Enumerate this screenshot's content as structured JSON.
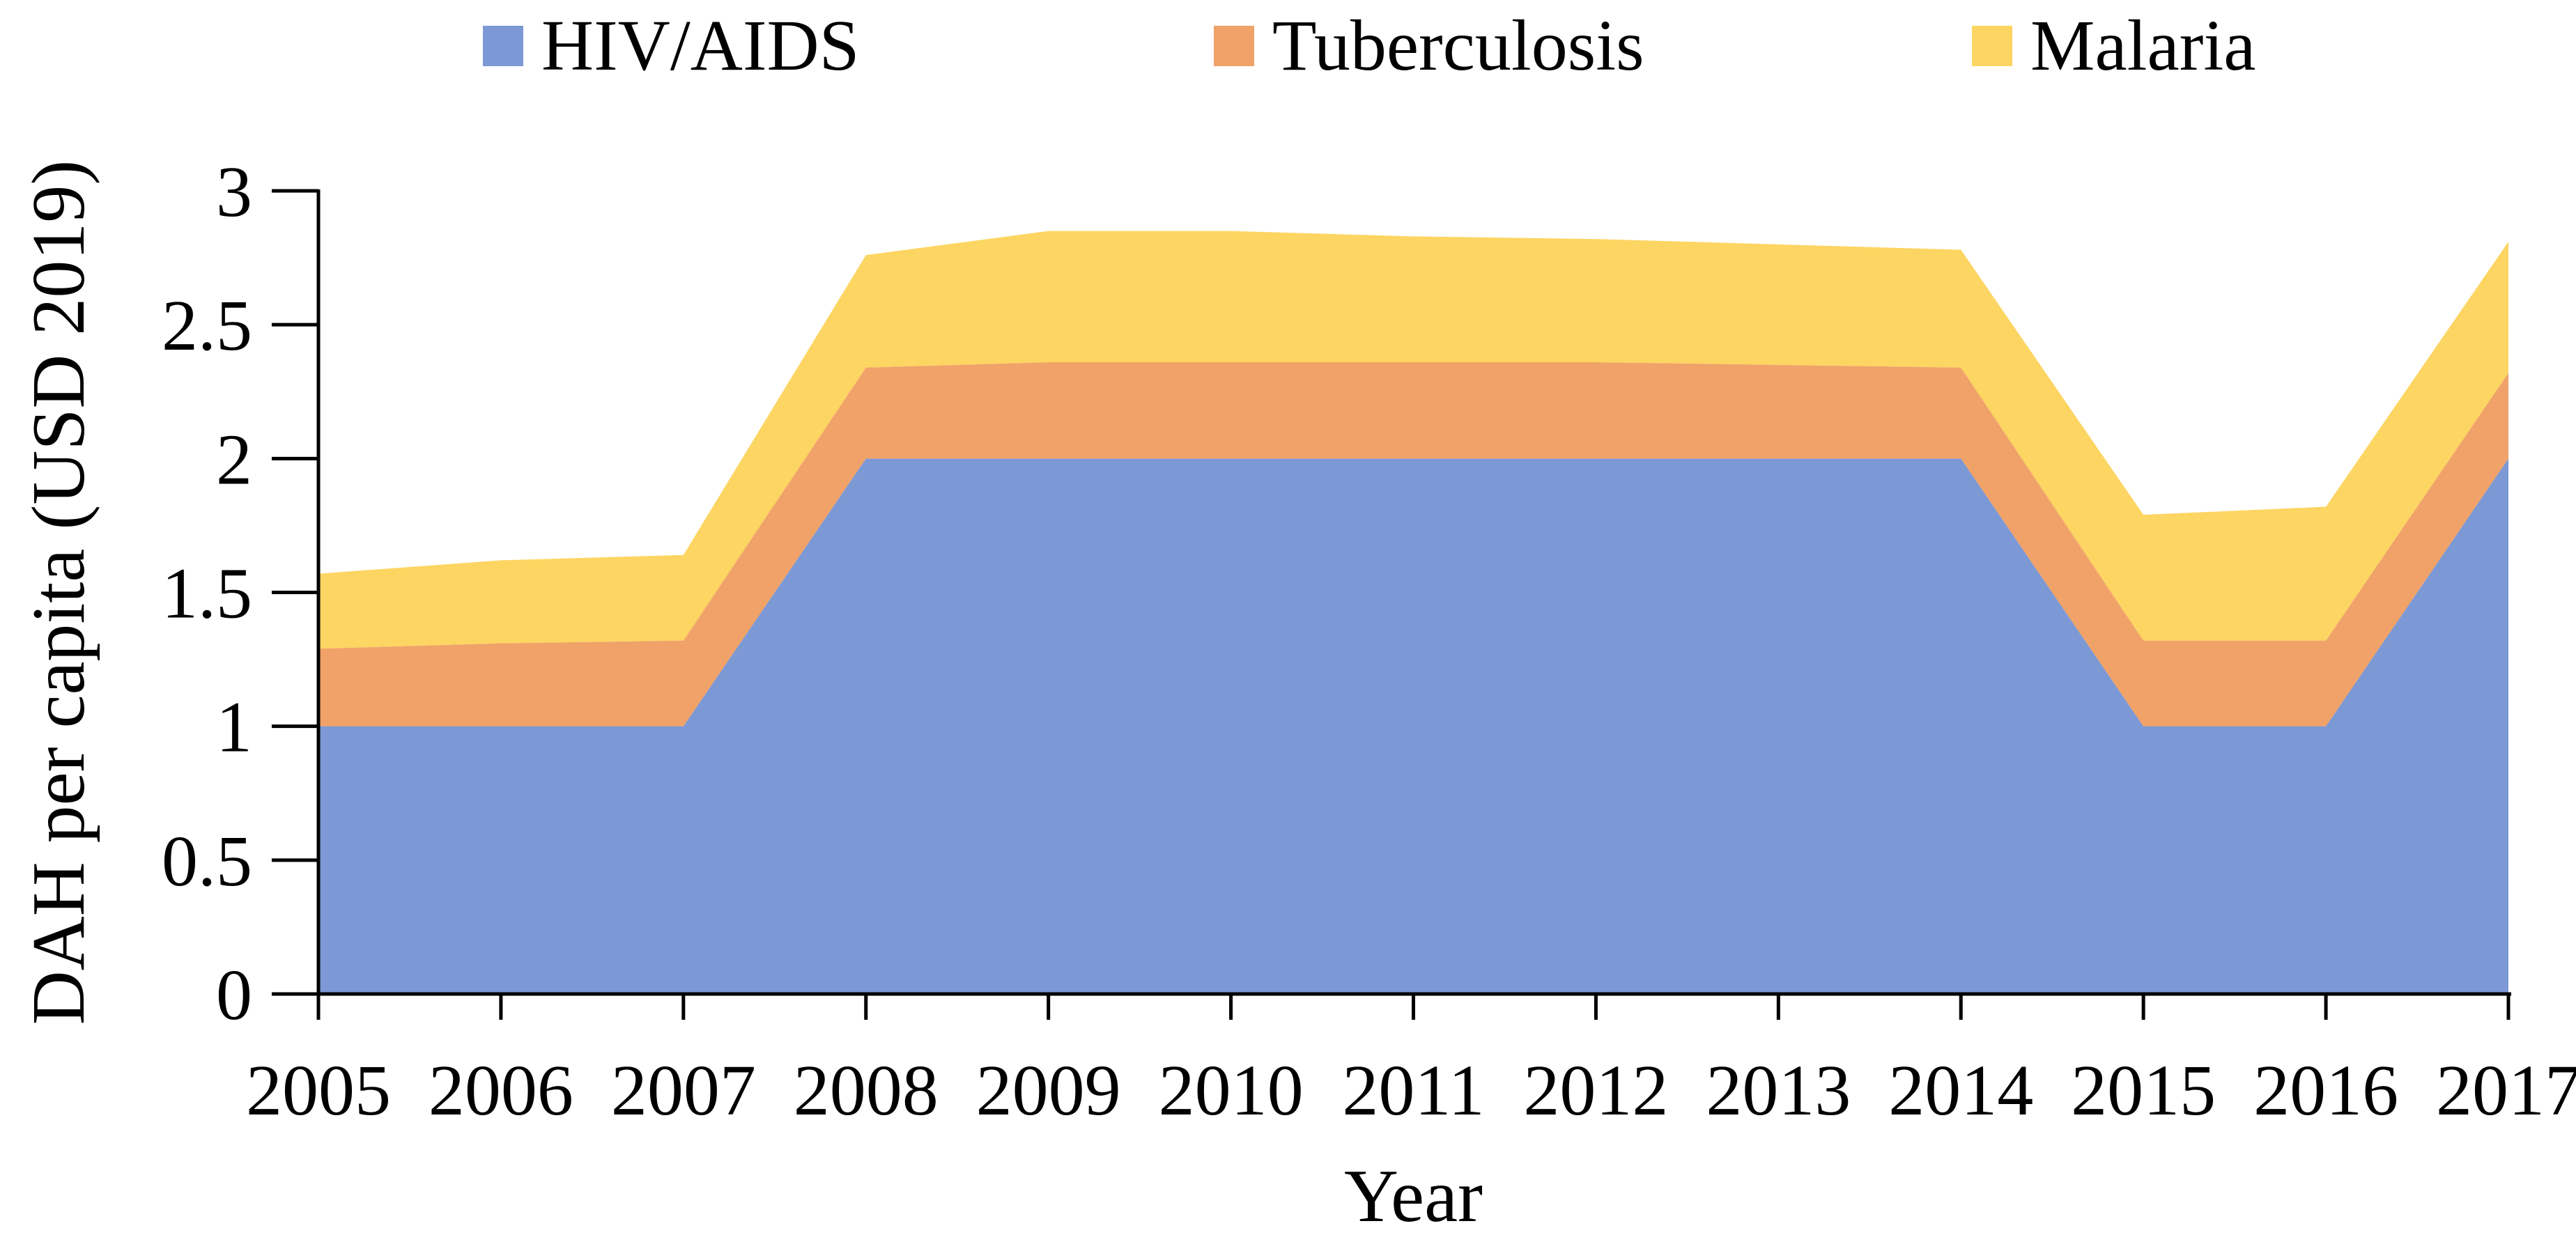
{
  "legend": {
    "items": [
      {
        "id": "hiv",
        "label": "HIV/AIDS",
        "color": "#7C98D5"
      },
      {
        "id": "tb",
        "label": "Tuberculosis",
        "color": "#F0A268"
      },
      {
        "id": "malaria",
        "label": "Malaria",
        "color": "#FDD562"
      }
    ]
  },
  "y_axis": {
    "title": "DAH per capita (USD 2019)",
    "tick_labels": [
      "0",
      "0.5",
      "1",
      "1.5",
      "2",
      "2.5",
      "3"
    ],
    "tick_values": [
      0,
      0.5,
      1,
      1.5,
      2,
      2.5,
      3
    ],
    "min": 0,
    "max": 3
  },
  "x_axis": {
    "title": "Year",
    "tick_labels": [
      "2005",
      "2006",
      "2007",
      "2008",
      "2009",
      "2010",
      "2011",
      "2012",
      "2013",
      "2014",
      "2015",
      "2016",
      "2017"
    ]
  },
  "chart_data": {
    "type": "area",
    "stacked": true,
    "title": "",
    "xlabel": "Year",
    "ylabel": "DAH per capita (USD 2019)",
    "x": [
      2005,
      2006,
      2007,
      2008,
      2009,
      2010,
      2011,
      2012,
      2013,
      2014,
      2015,
      2016,
      2017
    ],
    "ylim": [
      0,
      3
    ],
    "grid": false,
    "legend_position": "top",
    "series": [
      {
        "name": "HIV/AIDS",
        "color": "#7C98D5",
        "values": [
          1.0,
          1.0,
          1.0,
          2.0,
          2.0,
          2.0,
          2.0,
          2.0,
          2.0,
          2.0,
          1.0,
          1.0,
          2.0
        ]
      },
      {
        "name": "Tuberculosis",
        "color": "#F0A268",
        "values": [
          0.29,
          0.31,
          0.32,
          0.34,
          0.36,
          0.36,
          0.36,
          0.36,
          0.35,
          0.34,
          0.32,
          0.32,
          0.32
        ]
      },
      {
        "name": "Malaria",
        "color": "#FDD562",
        "values": [
          0.28,
          0.31,
          0.32,
          0.42,
          0.49,
          0.49,
          0.47,
          0.46,
          0.45,
          0.44,
          0.47,
          0.5,
          0.49
        ]
      }
    ],
    "stacked_totals": [
      1.57,
      1.62,
      1.64,
      2.76,
      2.85,
      2.85,
      2.83,
      2.82,
      2.8,
      2.78,
      1.79,
      1.82,
      2.81
    ]
  }
}
